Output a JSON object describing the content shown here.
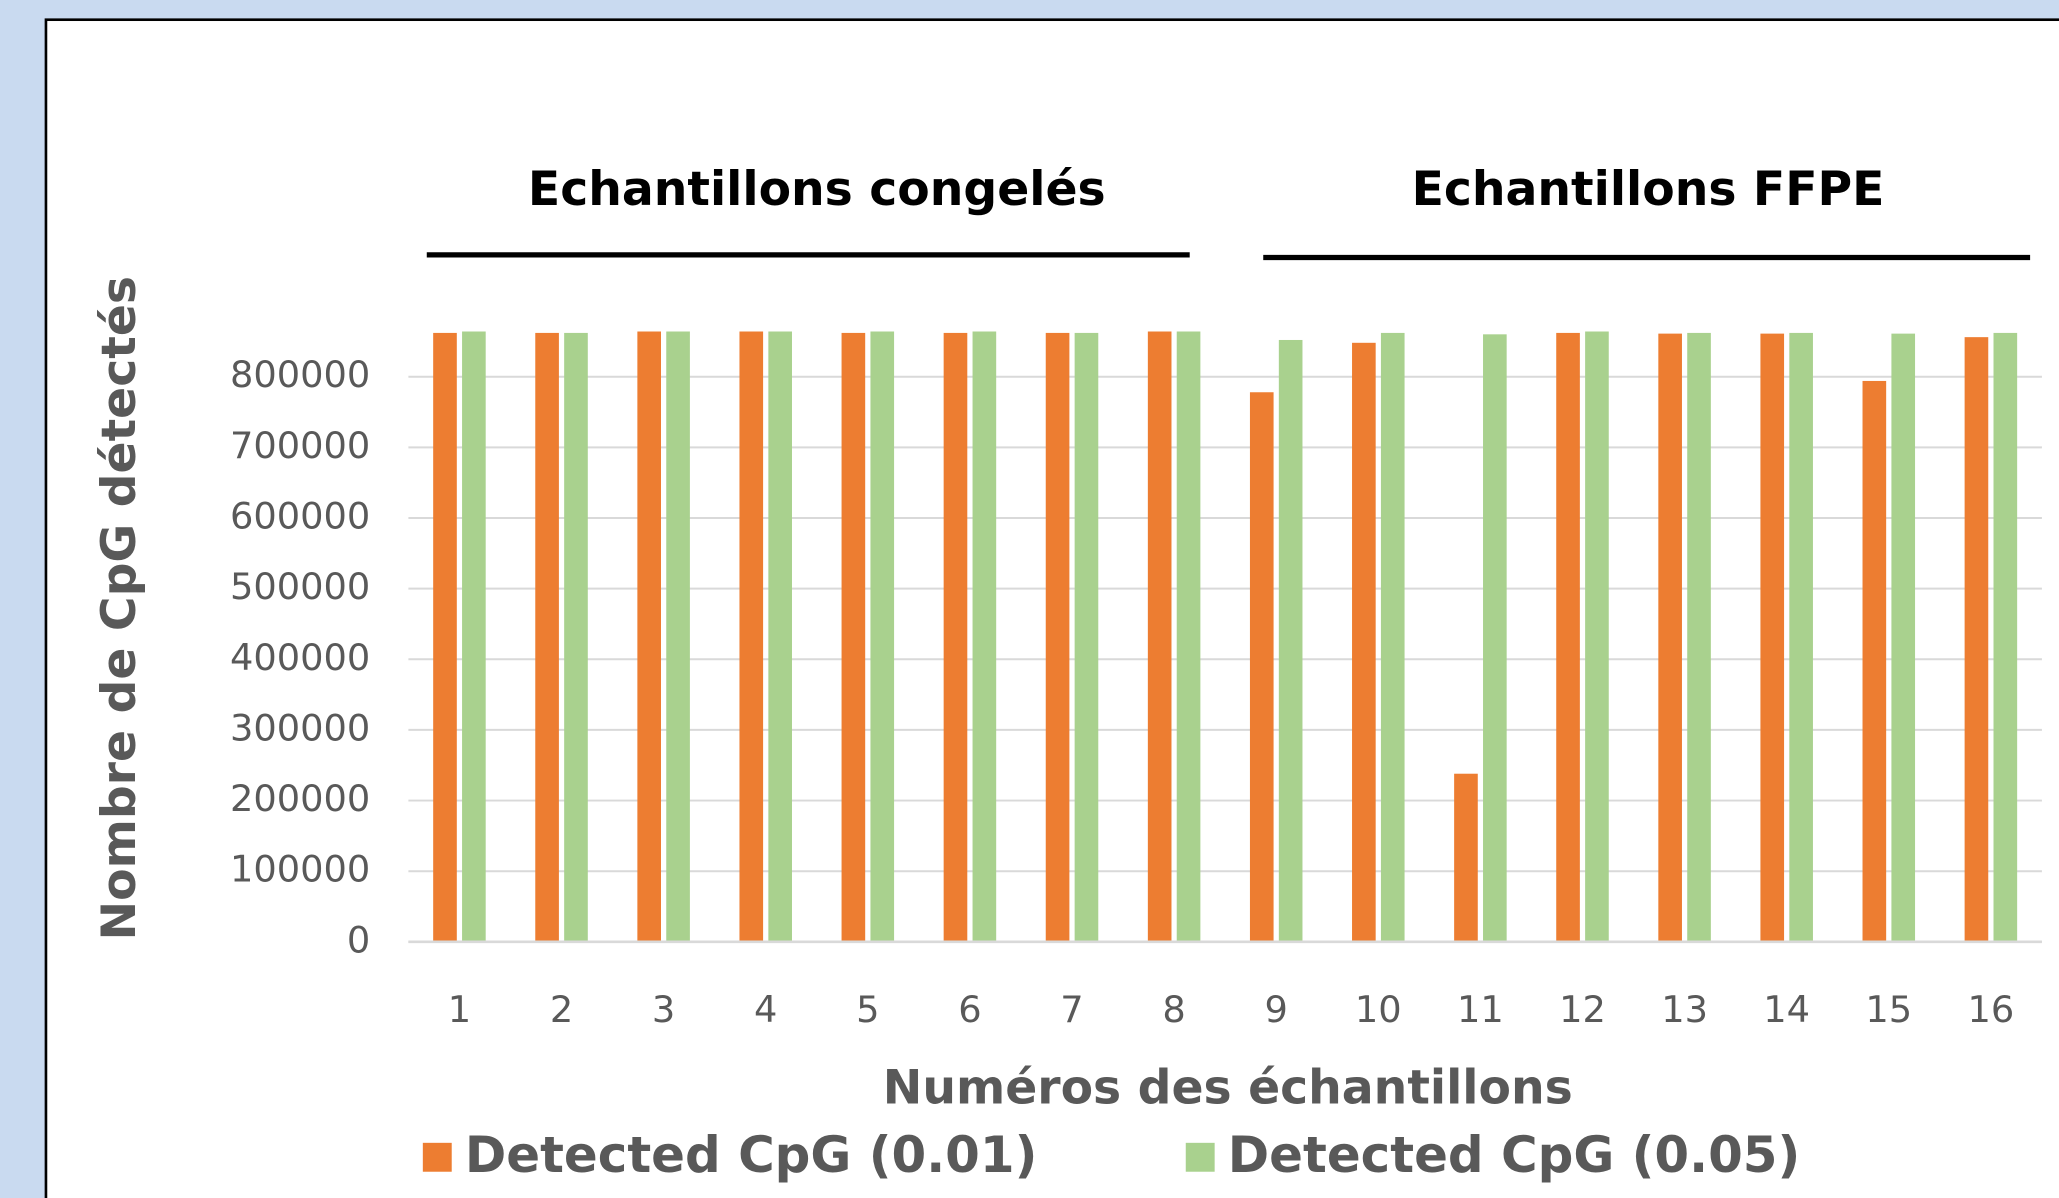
{
  "chart_data": {
    "type": "bar",
    "annotations": [
      "Echantillons congelés",
      "Echantillons FFPE"
    ],
    "xlabel": "Numéros des échantillons",
    "ylabel": "Nombre de CpG détectés",
    "categories": [
      "1",
      "2",
      "3",
      "4",
      "5",
      "6",
      "7",
      "8",
      "9",
      "10",
      "11",
      "12",
      "13",
      "14",
      "15",
      "16"
    ],
    "series": [
      {
        "name": "Detected CpG (0.01)",
        "color": "#ed7d31",
        "values": [
          862000,
          862000,
          864000,
          864000,
          862000,
          862000,
          862000,
          864000,
          778000,
          848000,
          238000,
          862000,
          861000,
          861000,
          794000,
          856000
        ]
      },
      {
        "name": "Detected CpG (0.05)",
        "color": "#a9d18e",
        "values": [
          864000,
          862000,
          864000,
          864000,
          864000,
          864000,
          862000,
          864000,
          852000,
          862000,
          860000,
          864000,
          862000,
          862000,
          861000,
          862000
        ]
      }
    ],
    "ylim": [
      0,
      900000
    ],
    "yticks": [
      0,
      100000,
      200000,
      300000,
      400000,
      500000,
      600000,
      700000,
      800000
    ],
    "grid": true,
    "legend": "bottom"
  }
}
